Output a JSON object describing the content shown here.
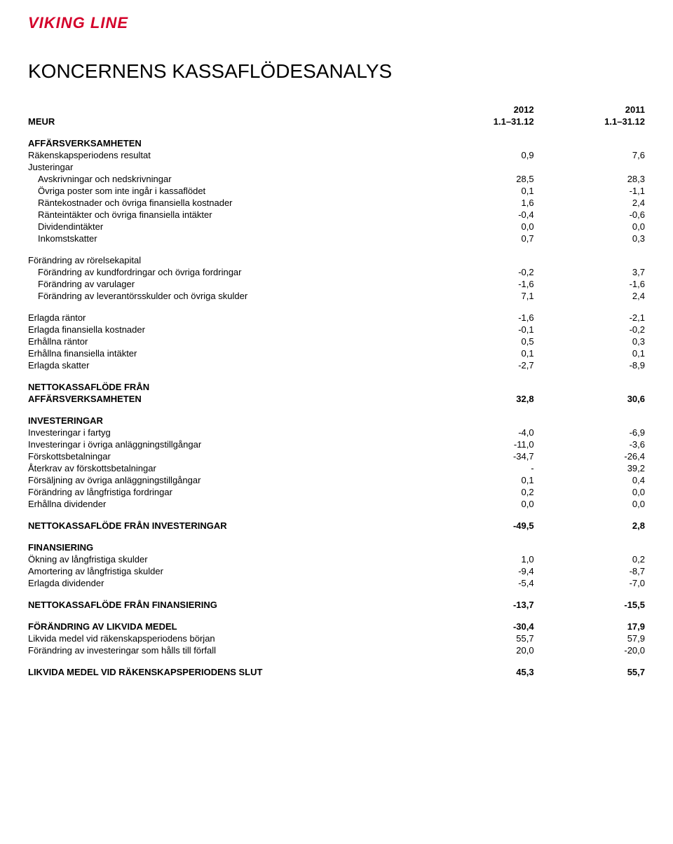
{
  "logo_text": "VIKING LINE",
  "page_title": "KONCERNENS KASSAFLÖDESANALYS",
  "header": {
    "meur": "MEUR",
    "year1": "2012",
    "year2": "2011",
    "period": "1.1–31.12"
  },
  "sections": [
    {
      "title": "AFFÄRSVERKSAMHETEN",
      "rows": [
        {
          "label": "Räkenskapsperiodens resultat",
          "c1": "0,9",
          "c2": "7,6"
        },
        {
          "label": "Justeringar",
          "c1": "",
          "c2": ""
        },
        {
          "label": "  Avskrivningar och nedskrivningar",
          "c1": "28,5",
          "c2": "28,3"
        },
        {
          "label": "  Övriga poster som inte ingår i kassaflödet",
          "c1": "0,1",
          "c2": "-1,1"
        },
        {
          "label": "  Räntekostnader och övriga finansiella kostnader",
          "c1": "1,6",
          "c2": "2,4"
        },
        {
          "label": "  Ränteintäkter och övriga finansiella intäkter",
          "c1": "-0,4",
          "c2": "-0,6"
        },
        {
          "label": "  Dividendintäkter",
          "c1": "0,0",
          "c2": "0,0"
        },
        {
          "label": "  Inkomstskatter",
          "c1": "0,7",
          "c2": "0,3"
        }
      ]
    },
    {
      "rows": [
        {
          "label": "Förändring av rörelsekapital",
          "c1": "",
          "c2": ""
        },
        {
          "label": "  Förändring av kundfordringar och övriga fordringar",
          "c1": "-0,2",
          "c2": "3,7"
        },
        {
          "label": "  Förändring av varulager",
          "c1": "-1,6",
          "c2": "-1,6"
        },
        {
          "label": "  Förändring av leverantörsskulder och övriga skulder",
          "c1": "7,1",
          "c2": "2,4"
        }
      ]
    },
    {
      "rows": [
        {
          "label": "Erlagda räntor",
          "c1": "-1,6",
          "c2": "-2,1"
        },
        {
          "label": "Erlagda finansiella kostnader",
          "c1": "-0,1",
          "c2": "-0,2"
        },
        {
          "label": "Erhållna räntor",
          "c1": "0,5",
          "c2": "0,3"
        },
        {
          "label": "Erhållna finansiella intäkter",
          "c1": "0,1",
          "c2": "0,1"
        },
        {
          "label": "Erlagda skatter",
          "c1": "-2,7",
          "c2": "-8,9"
        }
      ]
    },
    {
      "bold_rows": [
        {
          "label": "NETTOKASSAFLÖDE FRÅN",
          "c1": "",
          "c2": ""
        },
        {
          "label": "AFFÄRSVERKSAMHETEN",
          "c1": "32,8",
          "c2": "30,6"
        }
      ]
    },
    {
      "title": "INVESTERINGAR",
      "rows": [
        {
          "label": "Investeringar i fartyg",
          "c1": "-4,0",
          "c2": "-6,9"
        },
        {
          "label": "Investeringar i övriga anläggningstillgångar",
          "c1": "-11,0",
          "c2": "-3,6"
        },
        {
          "label": "Förskottsbetalningar",
          "c1": "-34,7",
          "c2": "-26,4"
        },
        {
          "label": "Återkrav av förskottsbetalningar",
          "c1": "-",
          "c2": "39,2"
        },
        {
          "label": "Försäljning av övriga anläggningstillgångar",
          "c1": "0,1",
          "c2": "0,4"
        },
        {
          "label": "Förändring av långfristiga fordringar",
          "c1": "0,2",
          "c2": "0,0"
        },
        {
          "label": "Erhållna dividender",
          "c1": "0,0",
          "c2": "0,0"
        }
      ]
    },
    {
      "bold_rows": [
        {
          "label": "NETTOKASSAFLÖDE FRÅN INVESTERINGAR",
          "c1": "-49,5",
          "c2": "2,8"
        }
      ]
    },
    {
      "title": "FINANSIERING",
      "rows": [
        {
          "label": "Ökning av långfristiga skulder",
          "c1": "1,0",
          "c2": "0,2"
        },
        {
          "label": "Amortering av långfristiga skulder",
          "c1": "-9,4",
          "c2": "-8,7"
        },
        {
          "label": "Erlagda dividender",
          "c1": "-5,4",
          "c2": "-7,0"
        }
      ]
    },
    {
      "bold_rows": [
        {
          "label": "NETTOKASSAFLÖDE FRÅN FINANSIERING",
          "c1": "-13,7",
          "c2": "-15,5"
        }
      ]
    },
    {
      "bold_rows": [
        {
          "label": "FÖRÄNDRING AV LIKVIDA MEDEL",
          "c1": "-30,4",
          "c2": "17,9"
        }
      ],
      "rows": [
        {
          "label": "Likvida medel vid räkenskapsperiodens början",
          "c1": "55,7",
          "c2": "57,9"
        },
        {
          "label": "Förändring av investeringar som hålls till förfall",
          "c1": "20,0",
          "c2": "-20,0"
        }
      ]
    },
    {
      "bold_rows": [
        {
          "label": "LIKVIDA MEDEL VID RÄKENSKAPSPERIODENS SLUT",
          "c1": "45,3",
          "c2": "55,7"
        }
      ]
    }
  ]
}
